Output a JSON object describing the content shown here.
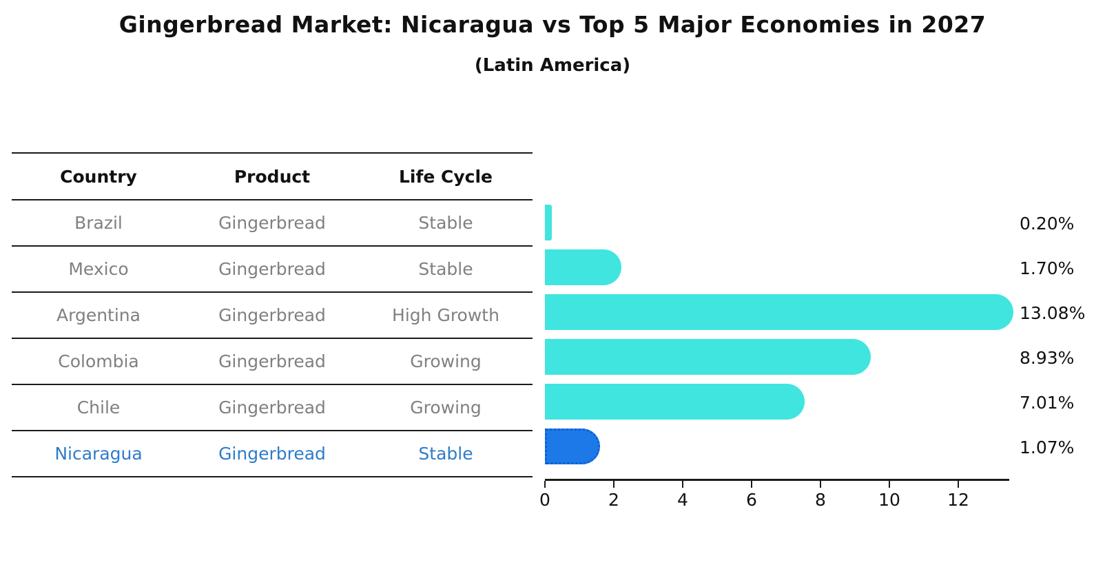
{
  "title": "Gingerbread Market: Nicaragua vs Top 5 Major Economies in 2027",
  "subtitle": "(Latin America)",
  "table": {
    "headers": [
      "Country",
      "Product",
      "Life Cycle"
    ],
    "rows": [
      {
        "country": "Brazil",
        "product": "Gingerbread",
        "life_cycle": "Stable",
        "highlighted": false
      },
      {
        "country": "Mexico",
        "product": "Gingerbread",
        "life_cycle": "Stable",
        "highlighted": false
      },
      {
        "country": "Argentina",
        "product": "Gingerbread",
        "life_cycle": "High Growth",
        "highlighted": false
      },
      {
        "country": "Colombia",
        "product": "Gingerbread",
        "life_cycle": "Growing",
        "highlighted": false
      },
      {
        "country": "Chile",
        "product": "Gingerbread",
        "life_cycle": "Growing",
        "highlighted": false
      },
      {
        "country": "Nicaragua",
        "product": "Gingerbread",
        "life_cycle": "Stable",
        "highlighted": true
      }
    ]
  },
  "chart_data": {
    "type": "bar",
    "orientation": "horizontal",
    "title": "Gingerbread Market: Nicaragua vs Top 5 Major Economies in 2027",
    "subtitle": "(Latin America)",
    "categories": [
      "Brazil",
      "Mexico",
      "Argentina",
      "Colombia",
      "Chile",
      "Nicaragua"
    ],
    "values": [
      0.2,
      1.7,
      13.08,
      8.93,
      7.01,
      1.07
    ],
    "value_labels": [
      "0.20%",
      "1.70%",
      "13.08%",
      "8.93%",
      "7.01%",
      "1.07%"
    ],
    "x_ticks": [
      0,
      2,
      4,
      6,
      8,
      10,
      12
    ],
    "xlim": [
      0,
      13.5
    ],
    "grid": false,
    "legend": false,
    "highlight_index": 5
  },
  "colors": {
    "bar": "#40E5DF",
    "highlight_bar": "#1D79E8",
    "highlight_border": "#0E5FD6",
    "highlight_text": "#2E7CC9",
    "row_text": "#808080",
    "header_text": "#111111",
    "line": "#1a1a1a"
  }
}
